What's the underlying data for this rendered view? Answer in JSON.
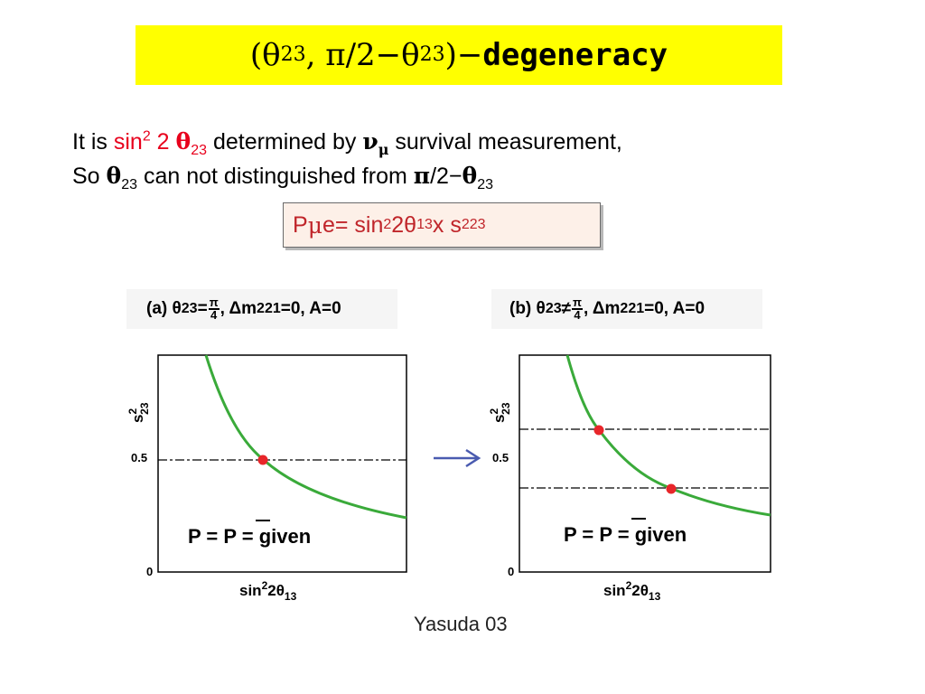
{
  "title": {
    "open": "(θ",
    "sub1": "23",
    "middle": ", π/2−θ",
    "sub2": "23",
    "close": ")−",
    "bold": "degeneracy"
  },
  "line1": {
    "prefix": "It is ",
    "sin": "sin",
    "sup": "2",
    "two": " 2 ",
    "theta": "θ",
    "theta_sub": "23",
    "middle": "  determined by  ",
    "nu": "ν",
    "nu_sub": "μ",
    "suffix": " survival measurement,"
  },
  "line2": {
    "prefix": "So  ",
    "theta": "θ",
    "theta_sub": "23",
    "middle": " can not  distinguished from ",
    "pi": "π",
    "mid2": "/2−",
    "theta2": "θ",
    "theta2_sub": "23"
  },
  "formula": {
    "p": "P",
    "mu": "μ",
    "e_eq": "e= sin",
    "sup1": "2",
    "two_theta": "2θ",
    "sub13": "13",
    "x_s": "  x s",
    "sup2": "2",
    "sub23": "23"
  },
  "panels": [
    {
      "label_prefix": "(a) θ",
      "label_sub": "23",
      "relation": "=",
      "frac_num": "π",
      "frac_den": "4",
      "label_rest": ", Δm",
      "m_sup": "2",
      "m_sub": "21",
      "label_end": "=0, A=0",
      "ytick_05": "0.5",
      "ytick_0": "0",
      "ylabel": "s",
      "ylabel_sup": "2",
      "ylabel_sub": "23",
      "xlabel": "sin",
      "xlabel_sup": "2",
      "xlabel_rest": "2θ",
      "xlabel_sub": "13",
      "eq_p": "P = ",
      "eq_pbar": "P",
      "eq_rest": " = given"
    },
    {
      "label_prefix": "(b) θ",
      "label_sub": "23",
      "relation": "≠",
      "frac_num": "π",
      "frac_den": "4",
      "label_rest": ", Δm",
      "m_sup": "2",
      "m_sub": "21",
      "label_end": "=0, A=0",
      "ytick_05": "0.5",
      "ytick_0": "0",
      "ylabel": "s",
      "ylabel_sup": "2",
      "ylabel_sub": "23",
      "xlabel": "sin",
      "xlabel_sup": "2",
      "xlabel_rest": "2θ",
      "xlabel_sub": "13",
      "eq_p": "P = ",
      "eq_pbar": "P",
      "eq_rest": " = given"
    }
  ],
  "caption": "Yasuda 03",
  "colors": {
    "title_bg": "#ffff00",
    "highlight": "#e8001c",
    "curve": "#3aaa3a",
    "point": "#e8262a",
    "arrow": "#4a5bb0"
  }
}
